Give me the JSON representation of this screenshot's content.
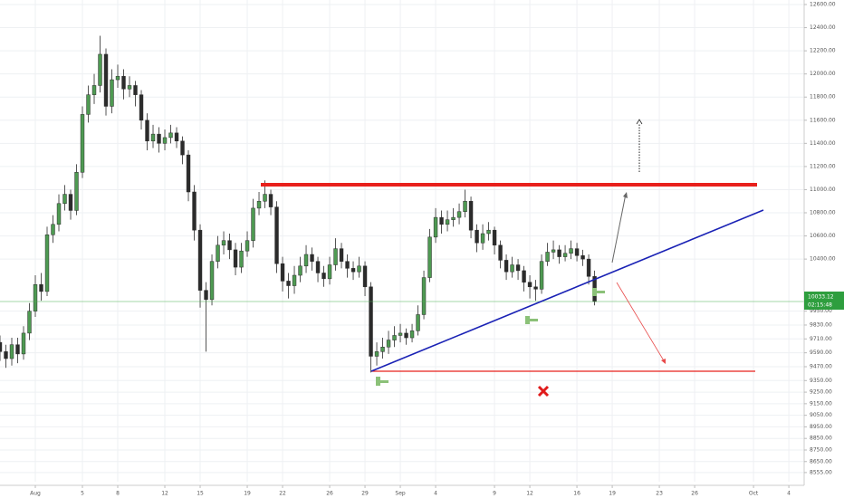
{
  "chart_data": {
    "type": "candlestick",
    "up_color": "#4e9a52",
    "down_color": "#2b2b2b",
    "grid": true,
    "open": [
      9680,
      9600,
      9540,
      9660,
      9580,
      9760,
      9950,
      10180,
      10120,
      10610,
      10700,
      10880,
      10960,
      10820,
      11150,
      11650,
      11820,
      11900,
      12170,
      11720,
      11950,
      11980,
      11870,
      11900,
      11820,
      11600,
      11420,
      11480,
      11400,
      11450,
      11490,
      11420,
      11300,
      10980,
      10650,
      10130,
      10050,
      10380,
      10520,
      10560,
      10480,
      10330,
      10470,
      10560,
      10840,
      10900,
      10960,
      10850,
      10360,
      10210,
      10170,
      10260,
      10340,
      10440,
      10380,
      10280,
      10230,
      10350,
      10490,
      10380,
      10320,
      10290,
      10340,
      10160,
      9560,
      9600,
      9640,
      9700,
      9740,
      9760,
      9720,
      9780,
      9920,
      10240,
      10590,
      10760,
      10700,
      10740,
      10760,
      10810,
      10900,
      10650,
      10540,
      10620,
      10650,
      10520,
      10390,
      10290,
      10350,
      10300,
      10200,
      10160,
      10140,
      10380,
      10460,
      10480,
      10420,
      10450,
      10490,
      10430,
      10400,
      10250
    ],
    "high": [
      9740,
      9660,
      9720,
      9720,
      9820,
      10020,
      10260,
      10280,
      10680,
      10780,
      10960,
      11040,
      11000,
      11220,
      11720,
      11900,
      12000,
      12330,
      12220,
      12040,
      12080,
      12040,
      11980,
      11940,
      11860,
      11660,
      11560,
      11540,
      11520,
      11560,
      11540,
      11460,
      11340,
      11040,
      10700,
      10200,
      10440,
      10600,
      10640,
      10620,
      10540,
      10540,
      10640,
      10920,
      10980,
      11080,
      11000,
      10900,
      10420,
      10280,
      10340,
      10420,
      10520,
      10500,
      10420,
      10340,
      10420,
      10580,
      10540,
      10440,
      10380,
      10420,
      10380,
      10200,
      9680,
      9720,
      9780,
      9820,
      9840,
      9800,
      9840,
      10000,
      10300,
      10660,
      10840,
      10820,
      10820,
      10840,
      10880,
      11000,
      10940,
      10700,
      10700,
      10720,
      10680,
      10560,
      10440,
      10420,
      10400,
      10340,
      10260,
      10220,
      10440,
      10540,
      10560,
      10520,
      10520,
      10560,
      10540,
      10480,
      10440,
      10300
    ],
    "low": [
      9520,
      9460,
      9480,
      9500,
      9530,
      9700,
      9900,
      10040,
      10080,
      10540,
      10640,
      10820,
      10740,
      10780,
      11100,
      11580,
      11740,
      11840,
      11640,
      11660,
      11880,
      11780,
      11800,
      11720,
      11520,
      11340,
      11360,
      11320,
      11340,
      11400,
      11360,
      11220,
      10900,
      10560,
      9980,
      9600,
      10000,
      10320,
      10440,
      10400,
      10260,
      10280,
      10420,
      10500,
      10780,
      10840,
      10780,
      10280,
      10120,
      10060,
      10100,
      10200,
      10280,
      10300,
      10200,
      10160,
      10180,
      10300,
      10320,
      10240,
      10220,
      10240,
      10080,
      9420,
      9480,
      9540,
      9580,
      9640,
      9680,
      9660,
      9680,
      9740,
      9880,
      10200,
      10540,
      10620,
      10640,
      10680,
      10700,
      10760,
      10580,
      10460,
      10480,
      10560,
      10440,
      10320,
      10220,
      10240,
      10220,
      10120,
      10060,
      10040,
      10100,
      10340,
      10400,
      10360,
      10380,
      10400,
      10380,
      10340,
      10180,
      10000
    ],
    "close": [
      9600,
      9540,
      9660,
      9580,
      9760,
      9950,
      10180,
      10120,
      10610,
      10700,
      10880,
      10960,
      10820,
      11150,
      11650,
      11820,
      11900,
      12170,
      11720,
      11950,
      11980,
      11870,
      11900,
      11820,
      11600,
      11420,
      11480,
      11400,
      11450,
      11490,
      11420,
      11300,
      10980,
      10650,
      10130,
      10050,
      10380,
      10520,
      10560,
      10480,
      10330,
      10470,
      10560,
      10840,
      10900,
      10960,
      10850,
      10360,
      10210,
      10170,
      10260,
      10340,
      10440,
      10380,
      10280,
      10230,
      10350,
      10490,
      10380,
      10320,
      10290,
      10340,
      10160,
      9560,
      9600,
      9640,
      9700,
      9740,
      9760,
      9720,
      9780,
      9920,
      10240,
      10590,
      10760,
      10700,
      10740,
      10760,
      10810,
      10900,
      10650,
      10540,
      10620,
      10650,
      10520,
      10390,
      10290,
      10350,
      10300,
      10200,
      10160,
      10140,
      10380,
      10460,
      10480,
      10420,
      10450,
      10490,
      10430,
      10400,
      10250,
      10033.12
    ],
    "last_price_label": "10033.12",
    "countdown": "02:15:48",
    "xlim": [
      0,
      136.6
    ],
    "xticks": [
      {
        "value": 6,
        "label": "Aug"
      },
      {
        "value": 14,
        "label": "5"
      },
      {
        "value": 20,
        "label": "8"
      },
      {
        "value": 28,
        "label": "12"
      },
      {
        "value": 34,
        "label": "15"
      },
      {
        "value": 42,
        "label": "19"
      },
      {
        "value": 48,
        "label": "22"
      },
      {
        "value": 56,
        "label": "26"
      },
      {
        "value": 62,
        "label": "29"
      },
      {
        "value": 68,
        "label": "Sep"
      },
      {
        "value": 74,
        "label": "4"
      },
      {
        "value": 84,
        "label": "9"
      },
      {
        "value": 90,
        "label": "12"
      },
      {
        "value": 98,
        "label": "16"
      },
      {
        "value": 104,
        "label": "19"
      },
      {
        "value": 112,
        "label": "23"
      },
      {
        "value": 118,
        "label": "26"
      },
      {
        "value": 128,
        "label": "Oct"
      },
      {
        "value": 134,
        "label": "4"
      }
    ],
    "ylim": [
      8476,
      12639
    ],
    "yticks": [
      {
        "value": 12600,
        "label": "12600.00"
      },
      {
        "value": 12400,
        "label": "12400.00"
      },
      {
        "value": 12200,
        "label": "12200.00"
      },
      {
        "value": 12000,
        "label": "12000.00"
      },
      {
        "value": 11800,
        "label": "11800.00"
      },
      {
        "value": 11600,
        "label": "11600.00"
      },
      {
        "value": 11400,
        "label": "11400.00"
      },
      {
        "value": 11200,
        "label": "11200.00"
      },
      {
        "value": 11000,
        "label": "11000.00"
      },
      {
        "value": 10800,
        "label": "10800.00"
      },
      {
        "value": 10600,
        "label": "10600.00"
      },
      {
        "value": 10400,
        "label": "10400.00"
      },
      {
        "value": 9950,
        "label": "9950.00"
      },
      {
        "value": 9830,
        "label": "9830.00"
      },
      {
        "value": 9710,
        "label": "9710.00"
      },
      {
        "value": 9590,
        "label": "9590.00"
      },
      {
        "value": 9470,
        "label": "9470.00"
      },
      {
        "value": 9350,
        "label": "9350.00"
      },
      {
        "value": 9250,
        "label": "9250.00"
      },
      {
        "value": 9150,
        "label": "9150.00"
      },
      {
        "value": 9050,
        "label": "9050.00"
      },
      {
        "value": 8950,
        "label": "8950.00"
      },
      {
        "value": 8850,
        "label": "8850.00"
      },
      {
        "value": 8750,
        "label": "8750.00"
      },
      {
        "value": 8650,
        "label": "8650.00"
      },
      {
        "value": 8555,
        "label": "8555.00"
      }
    ]
  }
}
